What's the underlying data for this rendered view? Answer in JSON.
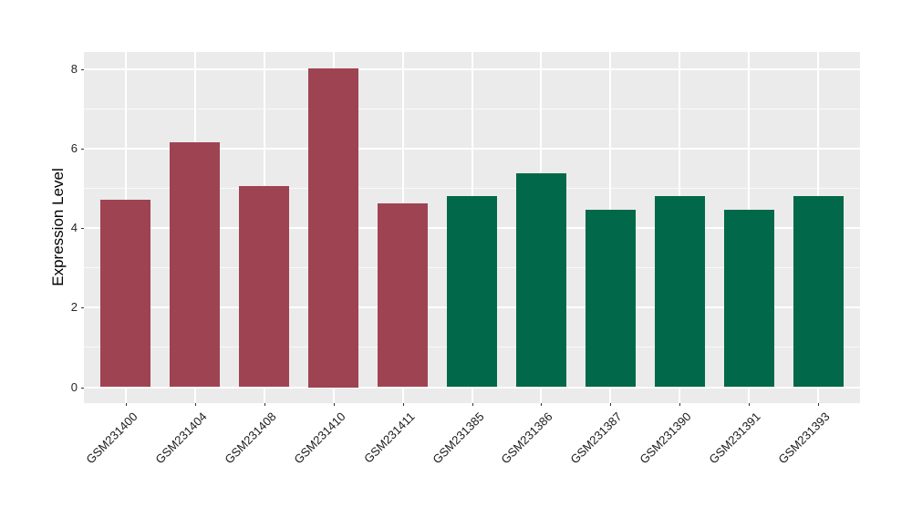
{
  "chart_data": {
    "type": "bar",
    "title": "",
    "xlabel": "",
    "ylabel": "Expression Level",
    "categories": [
      "GSM231400",
      "GSM231404",
      "GSM231408",
      "GSM231410",
      "GSM231411",
      "GSM231385",
      "GSM231386",
      "GSM231387",
      "GSM231390",
      "GSM231391",
      "GSM231393"
    ],
    "values": [
      4.71,
      6.16,
      5.07,
      8.04,
      4.62,
      4.81,
      5.38,
      4.46,
      4.81,
      4.46,
      4.81
    ],
    "groups": [
      "group1",
      "group1",
      "group1",
      "group1",
      "group1",
      "group2",
      "group2",
      "group2",
      "group2",
      "group2",
      "group2"
    ],
    "group_colors": {
      "group1": "#9E4352",
      "group2": "#016849"
    },
    "y_ticks": [
      0,
      2,
      4,
      6,
      8
    ],
    "y_minor_ticks": [
      1,
      3,
      5,
      7
    ],
    "ylim": [
      0,
      8.04
    ],
    "grid": true,
    "legend": "none",
    "x_label_rotation_deg": -45,
    "panel_bg": "#EBEBEB",
    "grid_major_color": "#FFFFFF",
    "grid_minor_color": "rgba(255,255,255,0.75)",
    "axis_text_color": "#262626",
    "tick_color": "#333333"
  }
}
